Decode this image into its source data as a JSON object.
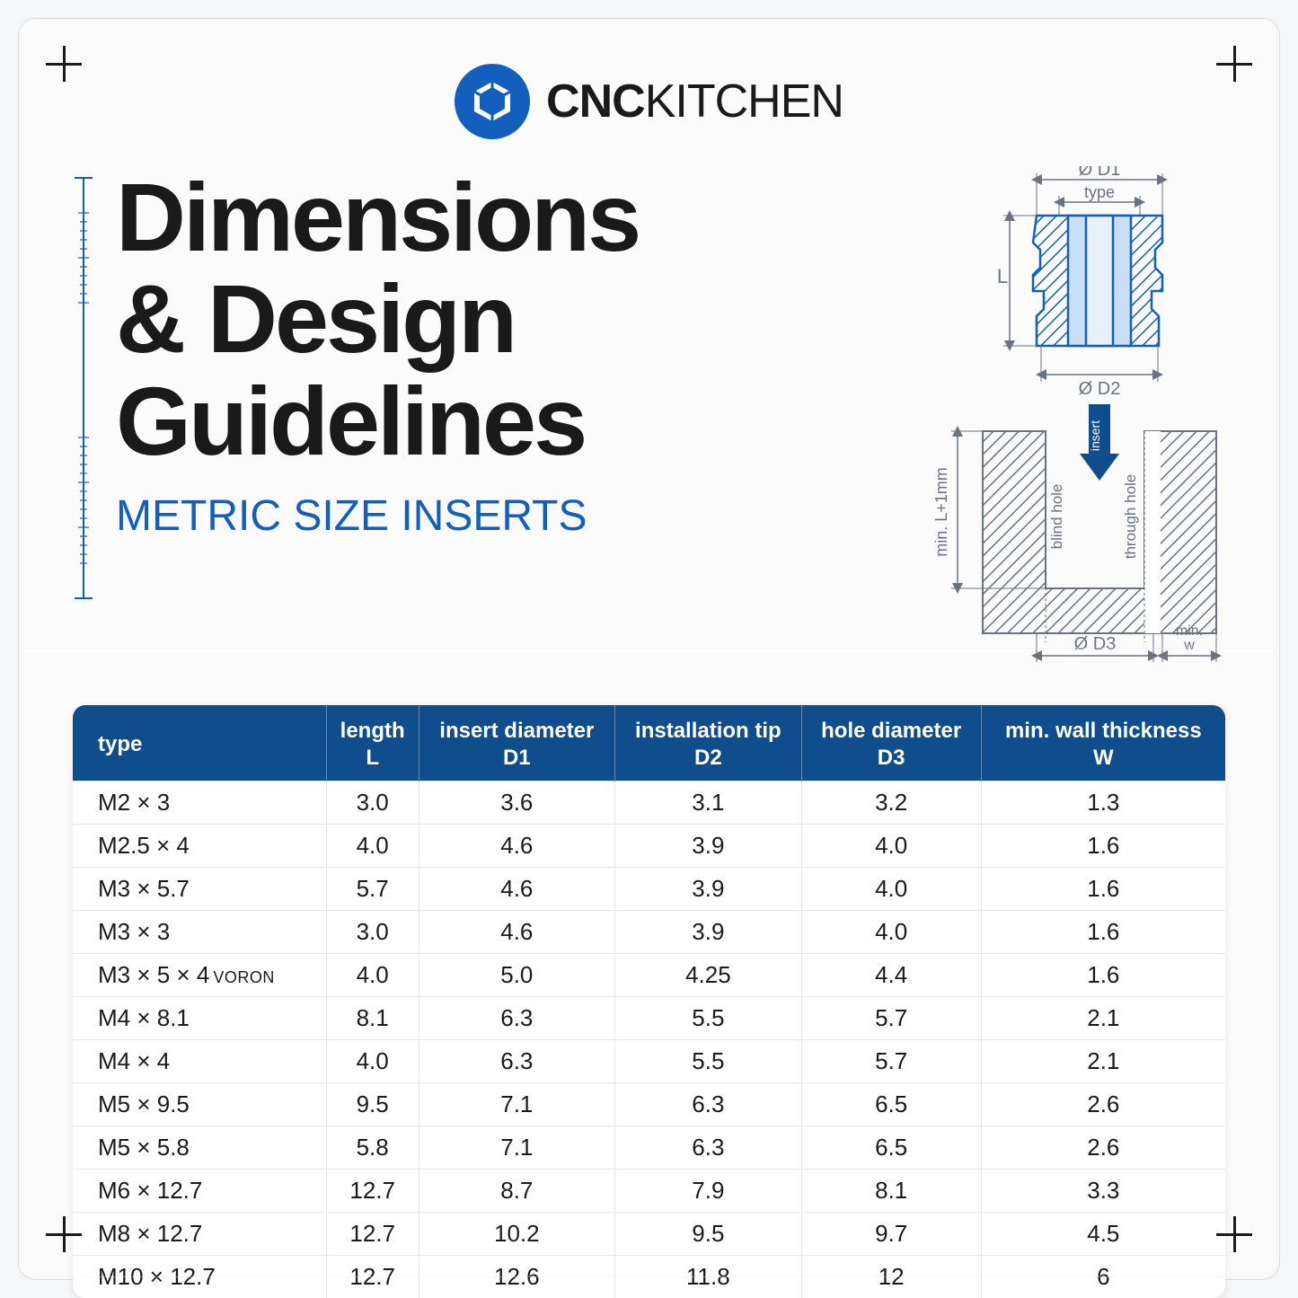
{
  "brand": {
    "bold": "CNC",
    "light": "KITCHEN"
  },
  "title_lines": [
    "Dimensions",
    "& Design",
    "Guidelines"
  ],
  "subtitle": "Metric Size Inserts",
  "diagram_labels": {
    "d1": "Ø D1",
    "d2": "Ø D2",
    "d3": "Ø D3",
    "type": "type",
    "L": "L",
    "insert": "insert",
    "min_l": "min. L+1mm",
    "blind": "blind hole",
    "through": "through hole",
    "min_w": "min.\nw"
  },
  "table": {
    "columns": [
      {
        "top": "type",
        "sub": ""
      },
      {
        "top": "length",
        "sub": "L"
      },
      {
        "top": "insert diameter",
        "sub": "D1"
      },
      {
        "top": "installation tip",
        "sub": "D2"
      },
      {
        "top": "hole diameter",
        "sub": "D3"
      },
      {
        "top": "min. wall thickness",
        "sub": "W"
      }
    ],
    "rows": [
      [
        "M2 × 3",
        "3.0",
        "3.6",
        "3.1",
        "3.2",
        "1.3"
      ],
      [
        "M2.5 × 4",
        "4.0",
        "4.6",
        "3.9",
        "4.0",
        "1.6"
      ],
      [
        "M3 × 5.7",
        "5.7",
        "4.6",
        "3.9",
        "4.0",
        "1.6"
      ],
      [
        "M3 × 3",
        "3.0",
        "4.6",
        "3.9",
        "4.0",
        "1.6"
      ],
      [
        "M3 × 5 × 4",
        "4.0",
        "5.0",
        "4.25",
        "4.4",
        "1.6"
      ],
      [
        "M4 × 8.1",
        "8.1",
        "6.3",
        "5.5",
        "5.7",
        "2.1"
      ],
      [
        "M4 × 4",
        "4.0",
        "6.3",
        "5.5",
        "5.7",
        "2.1"
      ],
      [
        "M5 × 9.5",
        "9.5",
        "7.1",
        "6.3",
        "6.5",
        "2.6"
      ],
      [
        "M5 × 5.8",
        "5.8",
        "7.1",
        "6.3",
        "6.5",
        "2.6"
      ],
      [
        "M6 × 12.7",
        "12.7",
        "8.7",
        "7.9",
        "8.1",
        "3.3"
      ],
      [
        "M8 × 12.7",
        "12.7",
        "10.2",
        "9.5",
        "9.7",
        "4.5"
      ],
      [
        "M10 × 12.7",
        "12.7",
        "12.6",
        "11.8",
        "12",
        "6"
      ]
    ],
    "voron_row_index": 4,
    "voron_tag": "VORON"
  },
  "colors": {
    "brand_blue": "#135fbd",
    "header_blue": "#0f4d8c",
    "diagram_blue": "#135fbd",
    "diagram_fill": "#c9dff5",
    "text": "#1a1a1a",
    "hatch": "#6b7280",
    "grid": "#e4e7eb"
  }
}
